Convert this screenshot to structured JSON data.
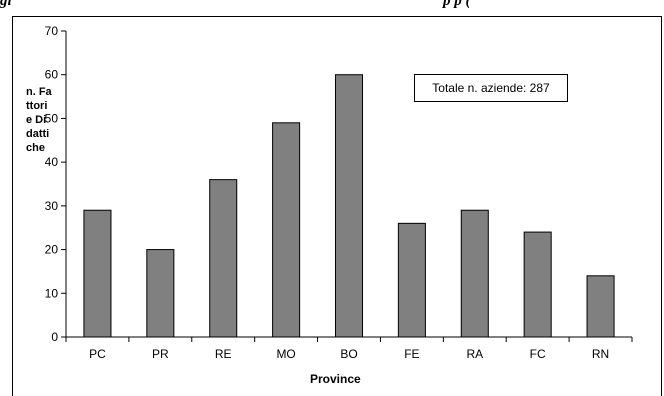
{
  "caption": {
    "left": "gi",
    "right": "p p   ("
  },
  "chart_data": {
    "type": "bar",
    "categories": [
      "PC",
      "PR",
      "RE",
      "MO",
      "BO",
      "FE",
      "RA",
      "FC",
      "RN"
    ],
    "values": [
      29,
      20,
      36,
      49,
      60,
      26,
      29,
      24,
      14
    ],
    "title": "",
    "xlabel": "Province",
    "ylabel": "n. Fattorie Didattiche",
    "ylim": [
      0,
      70
    ],
    "yticks": [
      0,
      10,
      20,
      30,
      40,
      50,
      60,
      70
    ],
    "annotation": "Totale n. aziende: 287",
    "grid": false,
    "bar_color": "#808080"
  }
}
